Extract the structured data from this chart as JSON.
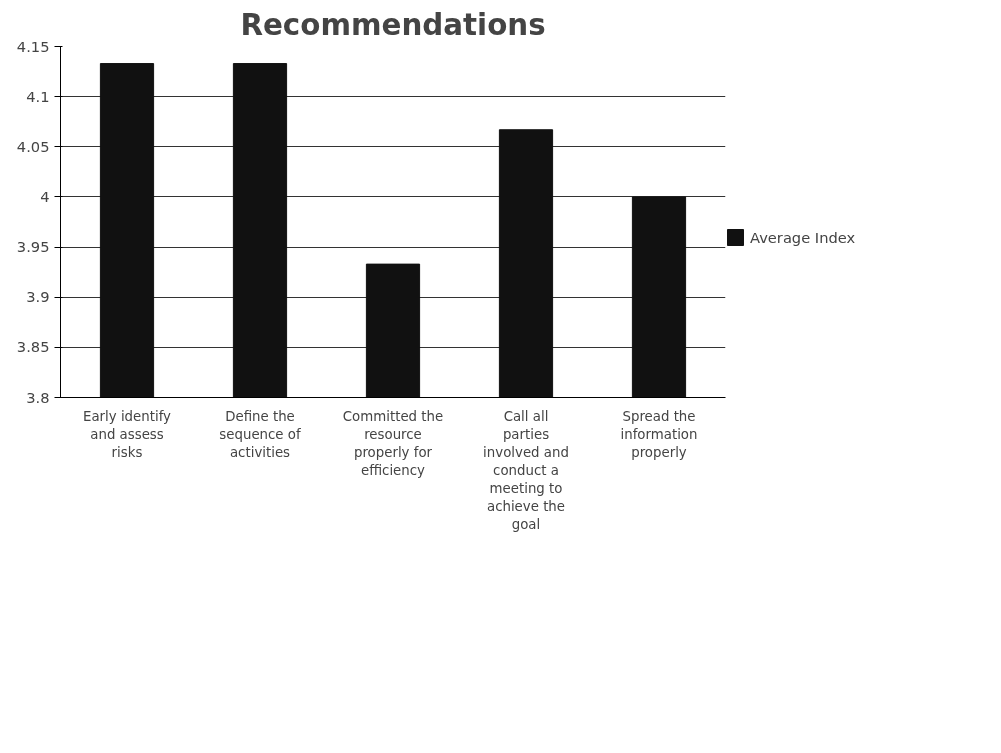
{
  "chart_data": {
    "type": "bar",
    "title": "Recommendations",
    "categories": [
      "Early identify and assess risks",
      "Define the sequence of activities",
      "Committed the resource properly for efficiency",
      "Call all parties involved and conduct a meeting to achieve the goal",
      "Spread the information properly"
    ],
    "series": [
      {
        "name": "Average Index",
        "color": "#111111",
        "values": [
          4.133,
          4.133,
          3.933,
          4.067,
          4.0
        ]
      }
    ],
    "ylim": [
      3.8,
      4.15
    ],
    "yticks": [
      3.8,
      3.85,
      3.9,
      3.95,
      4,
      4.05,
      4.1,
      4.15
    ],
    "grid": "y",
    "legend": "right"
  }
}
